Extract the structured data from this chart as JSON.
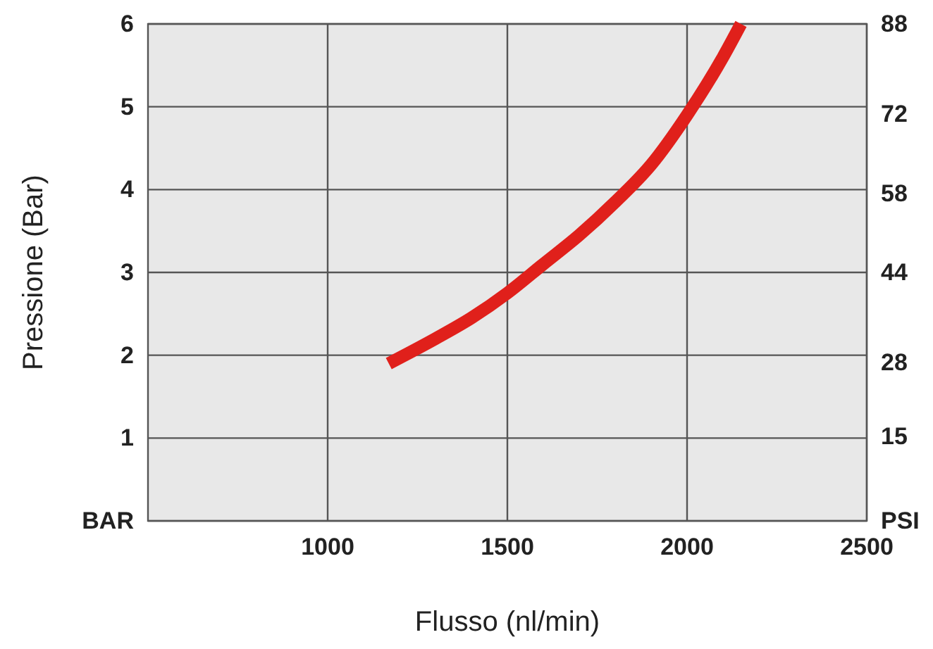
{
  "chart_data": {
    "type": "line",
    "xlabel": "Flusso (nl/min)",
    "ylabel": "Pressione (Bar)",
    "xlim": [
      500,
      2500
    ],
    "xticks": [
      1000,
      1500,
      2000,
      2500
    ],
    "ylim": [
      0,
      6
    ],
    "yticks": [
      {
        "value": 0,
        "label": "BAR"
      },
      1,
      2,
      3,
      4,
      5,
      6
    ],
    "y2lim": [
      0,
      88
    ],
    "y2ticks": [
      {
        "value": 0,
        "label": "PSI"
      },
      15,
      28,
      44,
      58,
      72,
      88
    ],
    "grid": true,
    "marker": "none",
    "line_style": "solid",
    "series": [
      {
        "color": "#e0201b",
        "x": [
          1170,
          1300,
          1400,
          1500,
          1600,
          1700,
          1800,
          1900,
          2000,
          2100,
          2150
        ],
        "values": [
          1.9,
          2.2,
          2.45,
          2.75,
          3.1,
          3.45,
          3.85,
          4.3,
          4.9,
          5.6,
          6.0
        ]
      }
    ]
  }
}
